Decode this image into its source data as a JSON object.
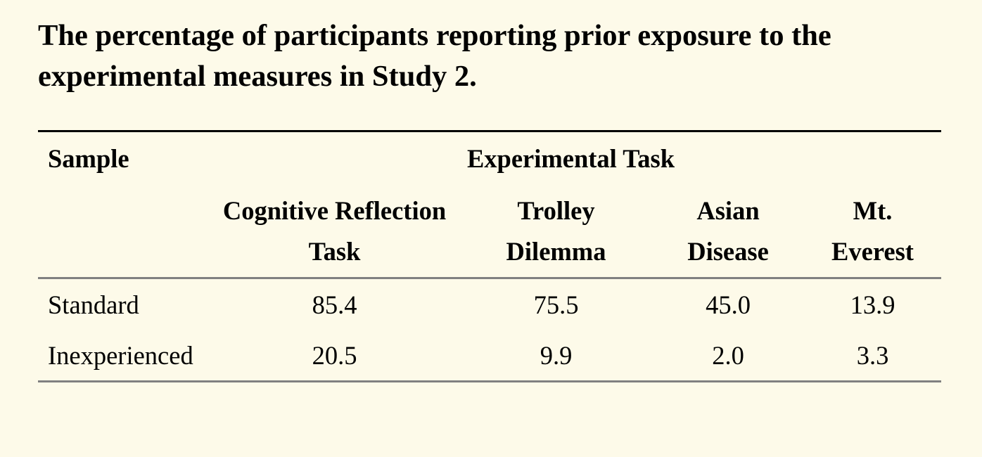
{
  "title": "The percentage of participants reporting prior exposure to the experimental measures in Study 2.",
  "table": {
    "header": {
      "sample": "Sample",
      "group": "Experimental Task"
    },
    "columns": [
      {
        "line1": "Cognitive Reflection",
        "line2": "Task"
      },
      {
        "line1": "Trolley",
        "line2": "Dilemma"
      },
      {
        "line1": "Asian",
        "line2": "Disease"
      },
      {
        "line1": "Mt.",
        "line2": "Everest"
      }
    ],
    "rows": [
      {
        "label": "Standard",
        "values": [
          "85.4",
          "75.5",
          "45.0",
          "13.9"
        ]
      },
      {
        "label": "Inexperienced",
        "values": [
          "20.5",
          "9.9",
          "2.0",
          "3.3"
        ]
      }
    ]
  },
  "colors": {
    "background": "#FDFAE9",
    "text": "#000000",
    "top_rule": "#000000",
    "inner_rule": "#808080"
  }
}
